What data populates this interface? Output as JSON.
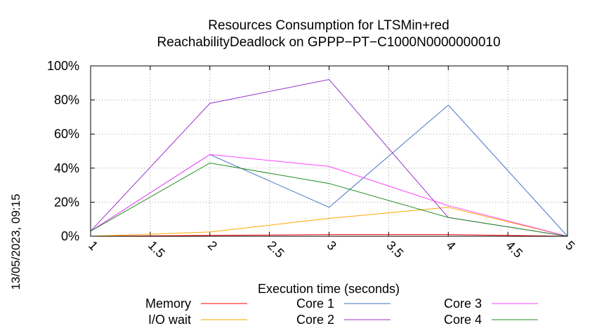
{
  "timestamp": "13/05/2023, 09:15",
  "chart_data": {
    "type": "line",
    "title": [
      "Resources Consumption for LTSMin+red",
      "ReachabilityDeadlock on GPPP−PT−C1000N0000000010"
    ],
    "xlabel": "Execution time (seconds)",
    "ylabel": "",
    "xlim": [
      1,
      5
    ],
    "ylim": [
      0,
      100
    ],
    "xticks": [
      "1",
      "1.5",
      "2",
      "2.5",
      "3",
      "3.5",
      "4",
      "4.5",
      "5"
    ],
    "yticks": [
      "0%",
      "20%",
      "40%",
      "60%",
      "80%",
      "100%"
    ],
    "grid": true,
    "legend_position": "bottom",
    "series": [
      {
        "name": "Memory",
        "color": "#ff0000",
        "points": [
          [
            1,
            0
          ],
          [
            2,
            0.5
          ],
          [
            3,
            1
          ],
          [
            4,
            1
          ],
          [
            5,
            0
          ]
        ]
      },
      {
        "name": "I/O wait",
        "color": "#ffa500",
        "points": [
          [
            1,
            0
          ],
          [
            2,
            2.5
          ],
          [
            3,
            10.5
          ],
          [
            4,
            17
          ],
          [
            5,
            0
          ]
        ]
      },
      {
        "name": "Core 1",
        "color": "#4472c4",
        "points": [
          [
            1,
            3
          ],
          [
            2,
            48
          ],
          [
            3,
            17
          ],
          [
            4,
            77
          ],
          [
            5,
            0
          ]
        ]
      },
      {
        "name": "Core 2",
        "color": "#9932cc",
        "points": [
          [
            1,
            3
          ],
          [
            2,
            78
          ],
          [
            3,
            92
          ],
          [
            4,
            11
          ],
          [
            5,
            0
          ]
        ]
      },
      {
        "name": "Core 3",
        "color": "#ff44ff",
        "points": [
          [
            1,
            3
          ],
          [
            2,
            48
          ],
          [
            3,
            41
          ],
          [
            4,
            18
          ],
          [
            5,
            0
          ]
        ]
      },
      {
        "name": "Core 4",
        "color": "#228b22",
        "points": [
          [
            1,
            3
          ],
          [
            2,
            43
          ],
          [
            3,
            31
          ],
          [
            4,
            11
          ],
          [
            5,
            0
          ]
        ]
      }
    ]
  }
}
